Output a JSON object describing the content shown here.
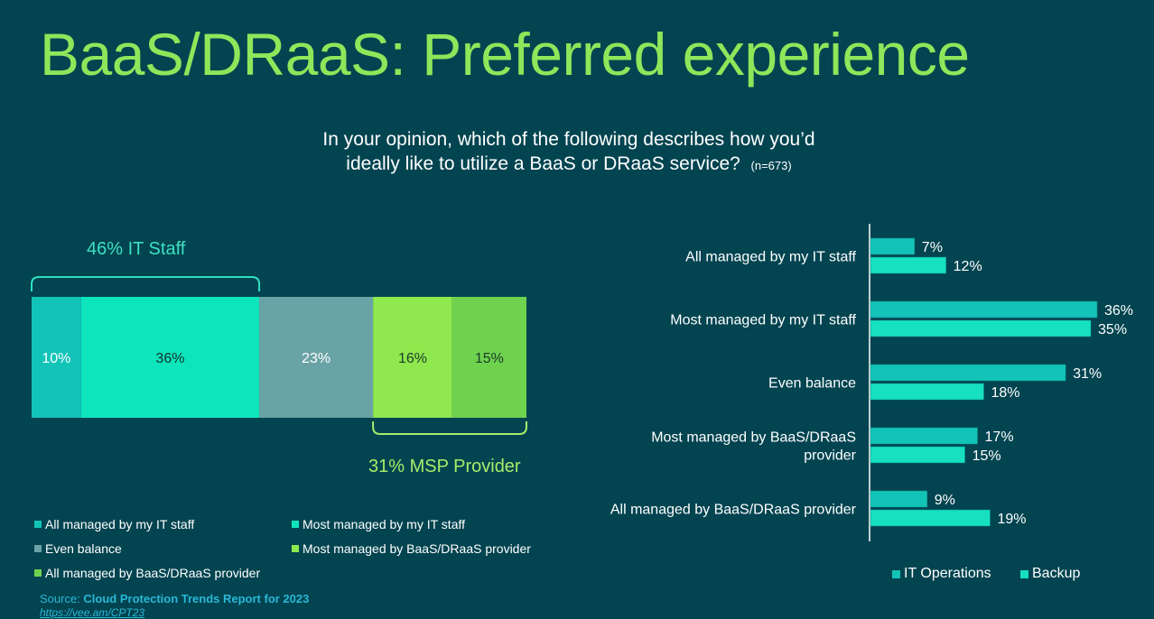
{
  "title": "BaaS/DRaaS: Preferred experience",
  "question": {
    "line1": "In your opinion, which of the following describes how you’d",
    "line2": "ideally like to utilize a BaaS or DRaaS service?",
    "n": "(n=673)"
  },
  "brace_labels": {
    "it_staff": "46% IT Staff",
    "msp": "31% MSP Provider"
  },
  "colors": {
    "background": "#024450",
    "title": "#8ee65a",
    "seg1": "#12c4b8",
    "seg2": "#0de6bc",
    "seg3": "#6aa3a6",
    "seg4": "#8ee84e",
    "seg5": "#6ed24e",
    "it_ops": "#12c4b8",
    "backup": "#16e0c0",
    "brace_it": "#2fe0c0",
    "brace_msp": "#a8ec6a"
  },
  "chart_data": [
    {
      "type": "bar",
      "orientation": "stacked-horizontal",
      "categories": [
        "All managed by my IT staff",
        "Most managed by my IT staff",
        "Even balance",
        "Most managed by BaaS/DRaaS provider",
        "All managed by BaaS/DRaaS provider"
      ],
      "values": [
        10,
        36,
        23,
        16,
        15
      ],
      "labels": [
        "10%",
        "36%",
        "23%",
        "16%",
        "15%"
      ],
      "legend": [
        "All managed by my IT staff",
        "Most managed by my IT staff",
        "Even balance",
        "Most managed by BaaS/DRaaS provider",
        "All managed by BaaS/DRaaS provider"
      ]
    },
    {
      "type": "bar",
      "orientation": "horizontal",
      "categories": [
        [
          "All managed by my IT staff"
        ],
        [
          "Most managed by my IT staff"
        ],
        [
          "Even balance"
        ],
        [
          "Most managed by BaaS/DRaaS",
          "provider"
        ],
        [
          "All managed by BaaS/DRaaS provider"
        ]
      ],
      "series": [
        {
          "name": "IT Operations",
          "values": [
            7,
            36,
            31,
            17,
            9
          ],
          "labels": [
            "7%",
            "36%",
            "31%",
            "17%",
            "9%"
          ]
        },
        {
          "name": "Backup",
          "values": [
            12,
            35,
            18,
            15,
            19
          ],
          "labels": [
            "12%",
            "35%",
            "18%",
            "15%",
            "19%"
          ]
        }
      ],
      "xlim": [
        0,
        36
      ]
    }
  ],
  "source": {
    "prefix": "Source: ",
    "name": "Cloud Protection Trends Report for 2023",
    "url": "https://vee.am/CPT23"
  }
}
